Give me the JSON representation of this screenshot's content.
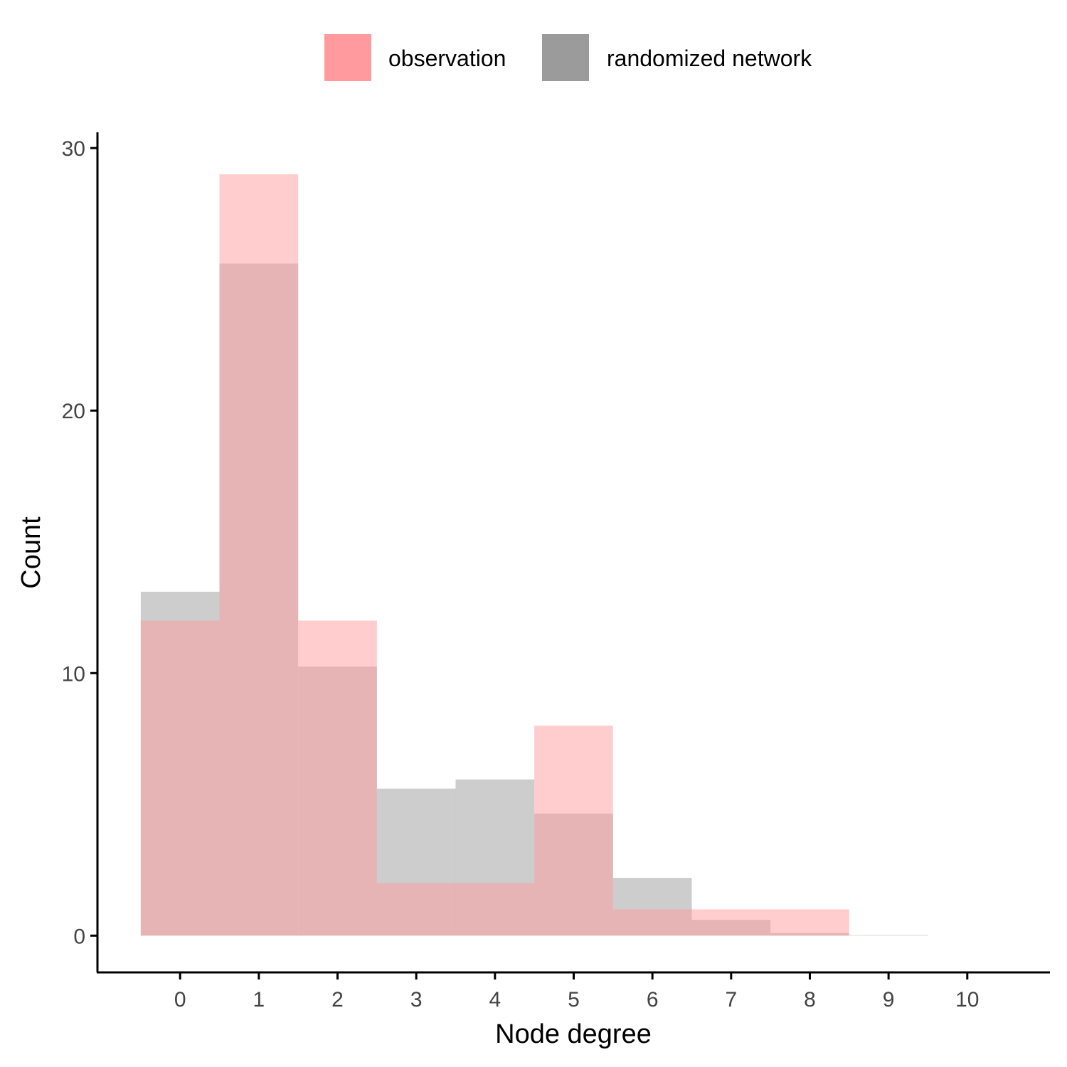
{
  "chart_data": {
    "type": "bar",
    "subtype": "overlaid-histogram",
    "title": "",
    "xlabel": "Node degree",
    "ylabel": "Count",
    "x": [
      0,
      1,
      2,
      3,
      4,
      5,
      6,
      7,
      8,
      9
    ],
    "x_ticks": [
      0,
      1,
      2,
      3,
      4,
      5,
      6,
      7,
      8,
      9,
      10
    ],
    "y_ticks": [
      0,
      10,
      20,
      30
    ],
    "xlim": [
      -1.05,
      11.05
    ],
    "ylim": [
      -1.4,
      30.6
    ],
    "grid": false,
    "legend_position": "top",
    "series": [
      {
        "name": "observation",
        "values": [
          12,
          29,
          12,
          2,
          2,
          8,
          1,
          1,
          1,
          0
        ],
        "color": "#FF9B9E",
        "opacity": 0.5
      },
      {
        "name": "randomized network",
        "values": [
          13.1,
          25.6,
          10.25,
          5.6,
          5.95,
          4.65,
          2.2,
          0.6,
          0.1,
          0.02
        ],
        "color": "#9B9B9B",
        "opacity": 0.5
      }
    ]
  }
}
